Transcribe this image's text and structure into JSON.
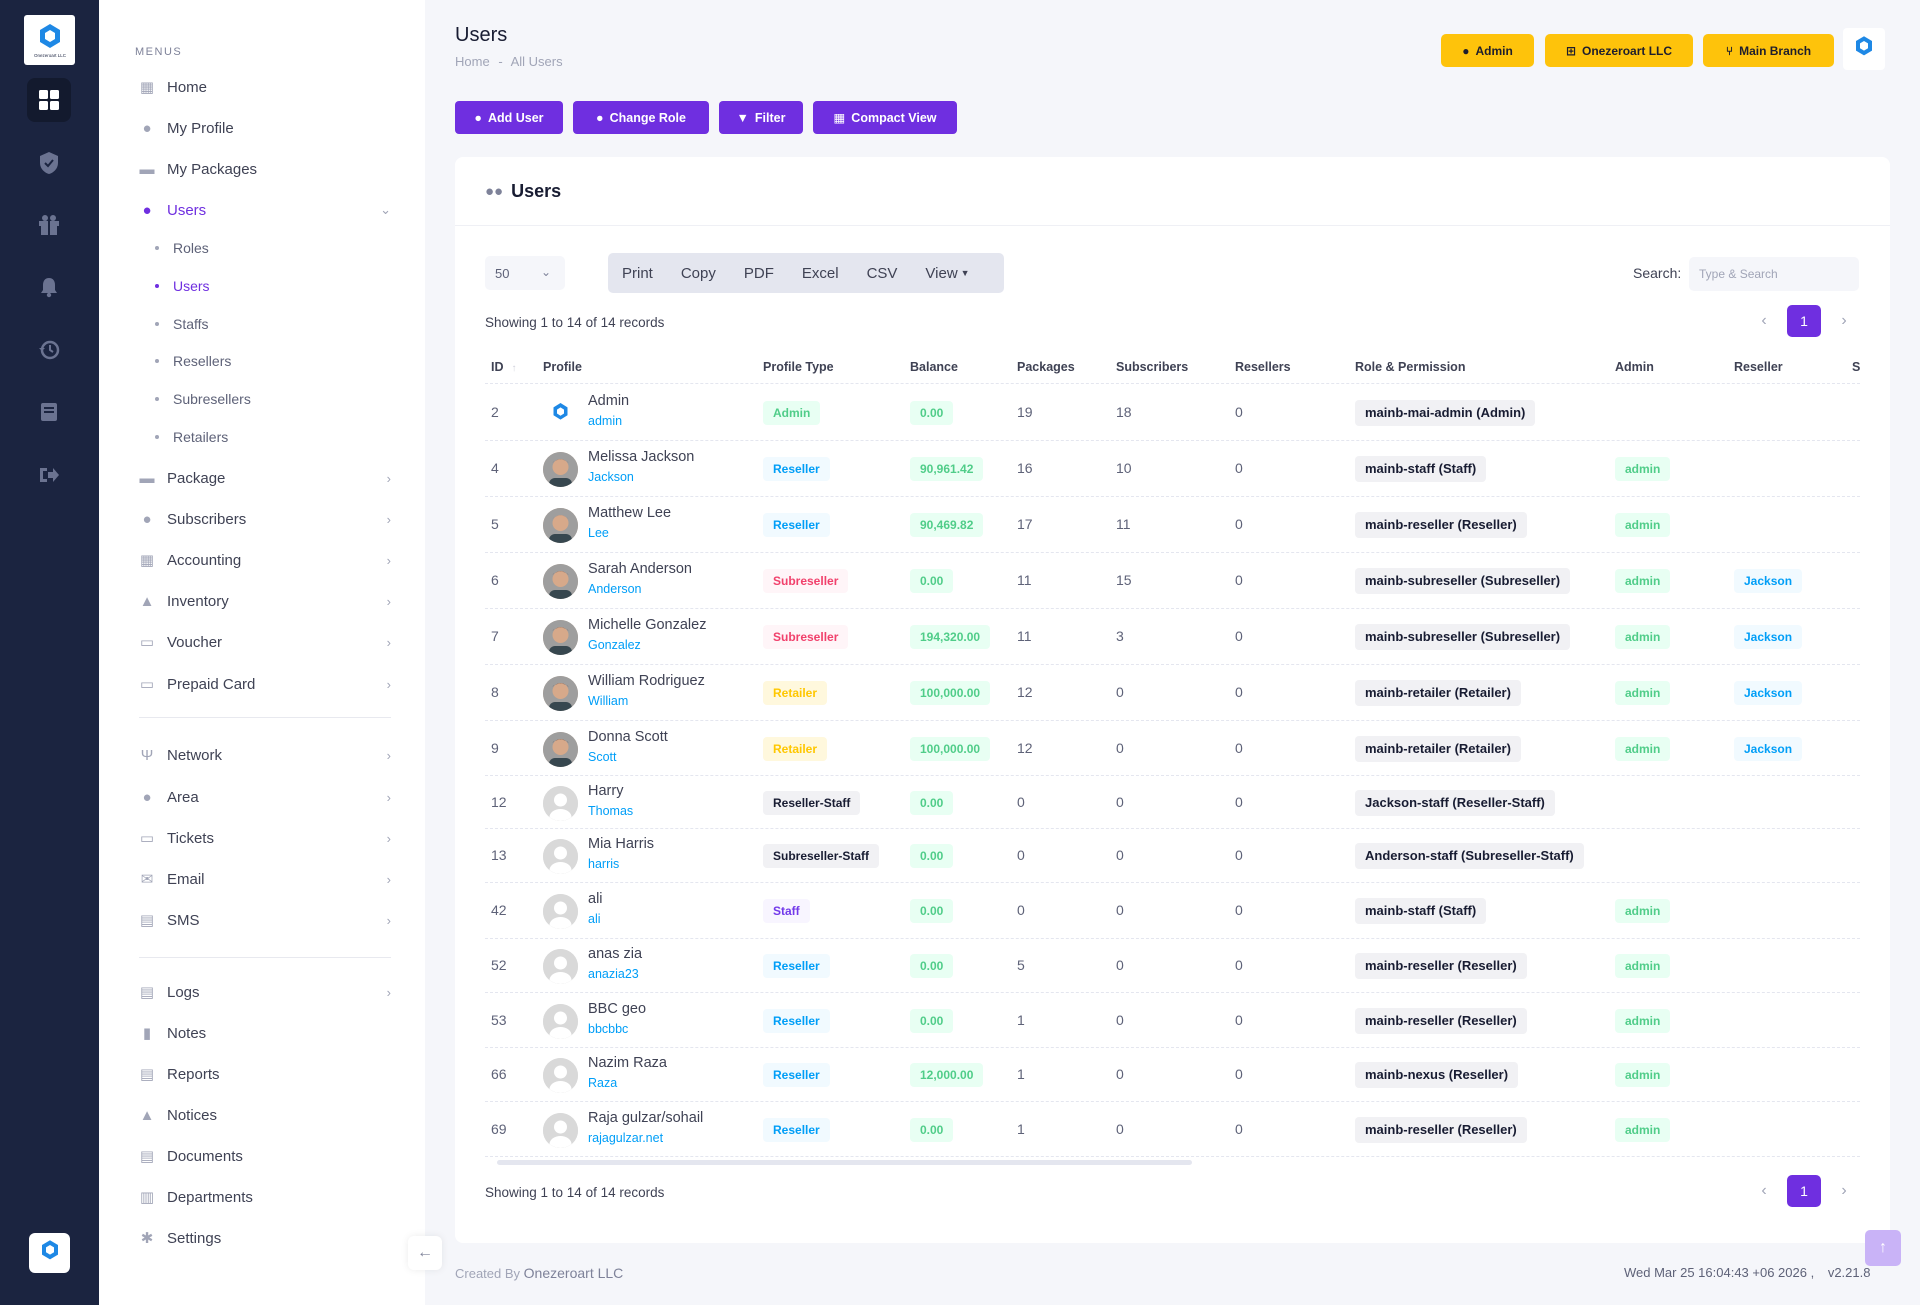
{
  "brand": {
    "logo_text": "Onezeroart LLC",
    "accent": "#6f2fe0",
    "rail_bg": "#1b2440",
    "badge_color": "#fec30b"
  },
  "rail": {
    "icons": [
      "dashboard-icon",
      "shield-icon",
      "gift-icon",
      "bell-icon",
      "history-icon",
      "book-icon",
      "logout-icon"
    ]
  },
  "sidebar": {
    "menus_title": "MENUS",
    "items": [
      {
        "label": "Home"
      },
      {
        "label": "My Profile"
      },
      {
        "label": "My Packages"
      },
      {
        "label": "Users"
      },
      {
        "label": "Package"
      },
      {
        "label": "Subscribers"
      },
      {
        "label": "Accounting"
      },
      {
        "label": "Inventory"
      },
      {
        "label": "Voucher"
      },
      {
        "label": "Prepaid Card"
      },
      {
        "label": "Network"
      },
      {
        "label": "Area"
      },
      {
        "label": "Tickets"
      },
      {
        "label": "Email"
      },
      {
        "label": "SMS"
      },
      {
        "label": "Logs"
      },
      {
        "label": "Notes"
      },
      {
        "label": "Reports"
      },
      {
        "label": "Notices"
      },
      {
        "label": "Documents"
      },
      {
        "label": "Departments"
      },
      {
        "label": "Settings"
      }
    ],
    "users_sub": [
      {
        "label": "Roles"
      },
      {
        "label": "Users"
      },
      {
        "label": "Staffs"
      },
      {
        "label": "Resellers"
      },
      {
        "label": "Subresellers"
      },
      {
        "label": "Retailers"
      }
    ]
  },
  "header": {
    "title": "Users",
    "breadcrumb_home": "Home",
    "breadcrumb_sep": "-",
    "breadcrumb_current": "All Users",
    "badges": {
      "role": "Admin",
      "company": "Onezeroart LLC",
      "branch": "Main Branch"
    }
  },
  "actions": {
    "add_user": "Add User",
    "change_role": "Change Role",
    "filter": "Filter",
    "compact_view": "Compact View"
  },
  "card": {
    "title": "Users"
  },
  "table_controls": {
    "page_length": "50",
    "buttons": {
      "print": "Print",
      "copy": "Copy",
      "pdf": "PDF",
      "excel": "Excel",
      "csv": "CSV",
      "view": "View"
    },
    "search_label": "Search:",
    "search_placeholder": "Type & Search",
    "showing_text": "Showing 1 to 14 of 14 records",
    "current_page": "1"
  },
  "table": {
    "columns": {
      "id": "ID",
      "profile": "Profile",
      "profile_type": "Profile Type",
      "balance": "Balance",
      "packages": "Packages",
      "subscribers": "Subscribers",
      "resellers": "Resellers",
      "role": "Role & Permission",
      "admin": "Admin",
      "reseller": "Reseller",
      "extra": "S"
    },
    "rows": [
      {
        "id": "2",
        "name": "Admin",
        "username": "admin",
        "type": "Admin",
        "balance": "0.00",
        "packages": "19",
        "subscribers": "18",
        "resellers": "0",
        "role": "mainb-mai-admin (Admin)",
        "admin": "",
        "reseller": ""
      },
      {
        "id": "4",
        "name": "Melissa Jackson",
        "username": "Jackson",
        "type": "Reseller",
        "balance": "90,961.42",
        "packages": "16",
        "subscribers": "10",
        "resellers": "0",
        "role": "mainb-staff (Staff)",
        "admin": "admin",
        "reseller": ""
      },
      {
        "id": "5",
        "name": "Matthew Lee",
        "username": "Lee",
        "type": "Reseller",
        "balance": "90,469.82",
        "packages": "17",
        "subscribers": "11",
        "resellers": "0",
        "role": "mainb-reseller (Reseller)",
        "admin": "admin",
        "reseller": ""
      },
      {
        "id": "6",
        "name": "Sarah Anderson",
        "username": "Anderson",
        "type": "Subreseller",
        "balance": "0.00",
        "packages": "11",
        "subscribers": "15",
        "resellers": "0",
        "role": "mainb-subreseller (Subreseller)",
        "admin": "admin",
        "reseller": "Jackson"
      },
      {
        "id": "7",
        "name": "Michelle Gonzalez",
        "username": "Gonzalez",
        "type": "Subreseller",
        "balance": "194,320.00",
        "packages": "11",
        "subscribers": "3",
        "resellers": "0",
        "role": "mainb-subreseller (Subreseller)",
        "admin": "admin",
        "reseller": "Jackson"
      },
      {
        "id": "8",
        "name": "William Rodriguez",
        "username": "William",
        "type": "Retailer",
        "balance": "100,000.00",
        "packages": "12",
        "subscribers": "0",
        "resellers": "0",
        "role": "mainb-retailer (Retailer)",
        "admin": "admin",
        "reseller": "Jackson"
      },
      {
        "id": "9",
        "name": "Donna Scott",
        "username": "Scott",
        "type": "Retailer",
        "balance": "100,000.00",
        "packages": "12",
        "subscribers": "0",
        "resellers": "0",
        "role": "mainb-retailer (Retailer)",
        "admin": "admin",
        "reseller": "Jackson"
      },
      {
        "id": "12",
        "name": "Harry",
        "username": "Thomas",
        "type": "Reseller-Staff",
        "balance": "0.00",
        "packages": "0",
        "subscribers": "0",
        "resellers": "0",
        "role": "Jackson-staff (Reseller-Staff)",
        "admin": "",
        "reseller": ""
      },
      {
        "id": "13",
        "name": "Mia Harris",
        "username": "harris",
        "type": "Subreseller-Staff",
        "balance": "0.00",
        "packages": "0",
        "subscribers": "0",
        "resellers": "0",
        "role": "Anderson-staff (Subreseller-Staff)",
        "admin": "",
        "reseller": ""
      },
      {
        "id": "42",
        "name": "ali",
        "username": "ali",
        "type": "Staff",
        "balance": "0.00",
        "packages": "0",
        "subscribers": "0",
        "resellers": "0",
        "role": "mainb-staff (Staff)",
        "admin": "admin",
        "reseller": ""
      },
      {
        "id": "52",
        "name": "anas zia",
        "username": "anazia23",
        "type": "Reseller",
        "balance": "0.00",
        "packages": "5",
        "subscribers": "0",
        "resellers": "0",
        "role": "mainb-reseller (Reseller)",
        "admin": "admin",
        "reseller": ""
      },
      {
        "id": "53",
        "name": "BBC geo",
        "username": "bbcbbc",
        "type": "Reseller",
        "balance": "0.00",
        "packages": "1",
        "subscribers": "0",
        "resellers": "0",
        "role": "mainb-reseller (Reseller)",
        "admin": "admin",
        "reseller": ""
      },
      {
        "id": "66",
        "name": "Nazim Raza",
        "username": "Raza",
        "type": "Reseller",
        "balance": "12,000.00",
        "packages": "1",
        "subscribers": "0",
        "resellers": "0",
        "role": "mainb-nexus (Reseller)",
        "admin": "admin",
        "reseller": ""
      },
      {
        "id": "69",
        "name": "Raja gulzar/sohail",
        "username": "rajagulzar.net",
        "type": "Reseller",
        "balance": "0.00",
        "packages": "1",
        "subscribers": "0",
        "resellers": "0",
        "role": "mainb-reseller (Reseller)",
        "admin": "admin",
        "reseller": ""
      }
    ]
  },
  "footer": {
    "created_by_label": "Created By",
    "company": "Onezeroart LLC",
    "datetime": "Wed Mar 25 16:04:43 +06 2026 ,",
    "version": "v2.21.8"
  }
}
